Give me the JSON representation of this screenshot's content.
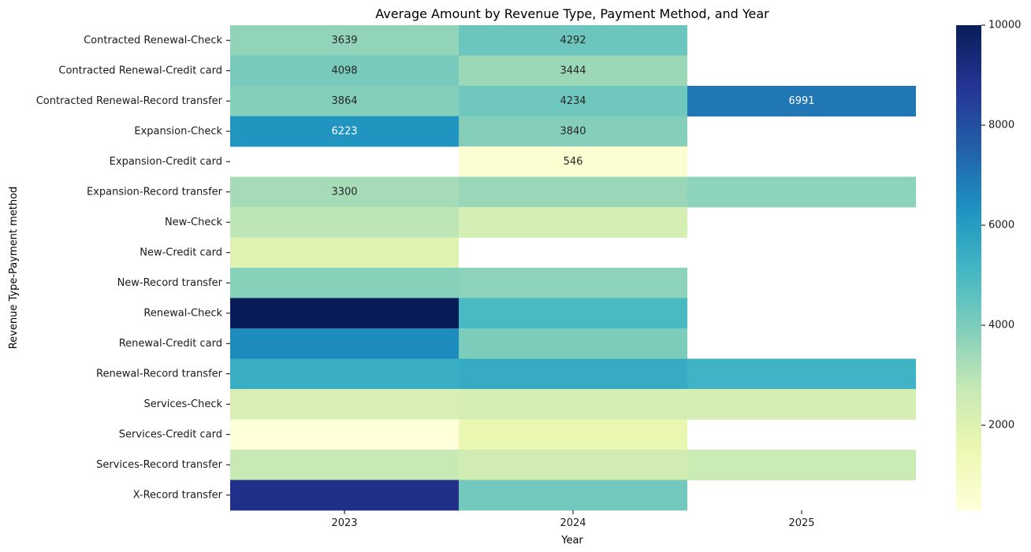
{
  "chart_data": {
    "type": "heatmap",
    "title": "Average Amount by Revenue Type, Payment Method, and Year",
    "xlabel": "Year",
    "ylabel": "Revenue Type-Payment method",
    "x": [
      "2023",
      "2024",
      "2025"
    ],
    "y": [
      "Contracted Renewal-Check",
      "Contracted Renewal-Credit card",
      "Contracted Renewal-Record transfer",
      "Expansion-Check",
      "Expansion-Credit card",
      "Expansion-Record transfer",
      "New-Check",
      "New-Credit card",
      "New-Record transfer",
      "Renewal-Check",
      "Renewal-Credit card",
      "Renewal-Record transfer",
      "Services-Check",
      "Services-Credit card",
      "Services-Record transfer",
      "X-Record transfer"
    ],
    "values": [
      [
        3639,
        4292,
        null
      ],
      [
        4098,
        3444,
        null
      ],
      [
        3864,
        4234,
        6991
      ],
      [
        6223,
        3840,
        null
      ],
      [
        null,
        546,
        null
      ],
      [
        3300,
        3500,
        3700
      ],
      [
        2900,
        2300,
        null
      ],
      [
        2000,
        null,
        null
      ],
      [
        3800,
        3700,
        null
      ],
      [
        10000,
        5000,
        null
      ],
      [
        6500,
        4000,
        null
      ],
      [
        5400,
        5500,
        5200
      ],
      [
        2200,
        2300,
        2300
      ],
      [
        300,
        1600,
        null
      ],
      [
        2700,
        2400,
        2600
      ],
      [
        9000,
        4200,
        null
      ]
    ],
    "annotations": [
      {
        "row": 0,
        "col": 0,
        "text": "3639"
      },
      {
        "row": 0,
        "col": 1,
        "text": "4292"
      },
      {
        "row": 1,
        "col": 0,
        "text": "4098"
      },
      {
        "row": 1,
        "col": 1,
        "text": "3444"
      },
      {
        "row": 2,
        "col": 0,
        "text": "3864"
      },
      {
        "row": 2,
        "col": 1,
        "text": "4234"
      },
      {
        "row": 2,
        "col": 2,
        "text": "6991"
      },
      {
        "row": 3,
        "col": 0,
        "text": "6223"
      },
      {
        "row": 3,
        "col": 1,
        "text": "3840"
      },
      {
        "row": 4,
        "col": 1,
        "text": "546"
      },
      {
        "row": 5,
        "col": 0,
        "text": "3300"
      }
    ],
    "colorbar": {
      "min": 300,
      "max": 10000,
      "ticks": [
        2000,
        4000,
        6000,
        8000,
        10000
      ],
      "colormap": "YlGnBu"
    }
  }
}
